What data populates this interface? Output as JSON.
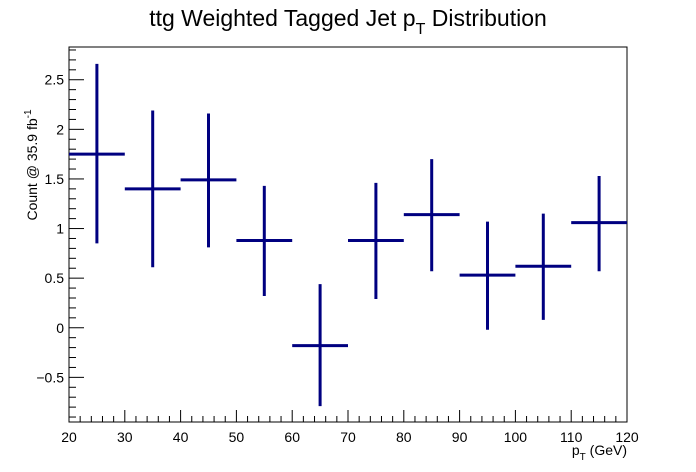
{
  "chart_data": {
    "type": "scatter",
    "style": "histogram-error-bars",
    "title_main": "ttg Weighted Tagged Jet p",
    "title_sub": "T",
    "title_end": " Distribution",
    "xlabel_main": "p",
    "xlabel_sub": "T",
    "xlabel_end": " (GeV)",
    "ylabel_main": "Count @ 35.9 fb",
    "ylabel_sup": "-1",
    "xlim": [
      20,
      120
    ],
    "ylim": [
      -0.95,
      2.83
    ],
    "xticks": [
      20,
      30,
      40,
      50,
      60,
      70,
      80,
      90,
      100,
      110,
      120
    ],
    "xtick_labels": [
      "20",
      "30",
      "40",
      "50",
      "60",
      "70",
      "80",
      "90",
      "100",
      "110",
      "120"
    ],
    "yticks": [
      -0.5,
      0,
      0.5,
      1,
      1.5,
      2,
      2.5
    ],
    "ytick_labels": [
      "−0.5",
      "0",
      "0.5",
      "1",
      "1.5",
      "2",
      "2.5"
    ],
    "grid": false,
    "color": "#000080",
    "points": [
      {
        "x": 25,
        "y": 1.75,
        "xerr": 5,
        "ylo": 0.85,
        "yhi": 2.66
      },
      {
        "x": 35,
        "y": 1.4,
        "xerr": 5,
        "ylo": 0.61,
        "yhi": 2.19
      },
      {
        "x": 45,
        "y": 1.49,
        "xerr": 5,
        "ylo": 0.81,
        "yhi": 2.16
      },
      {
        "x": 55,
        "y": 0.88,
        "xerr": 5,
        "ylo": 0.32,
        "yhi": 1.43
      },
      {
        "x": 65,
        "y": -0.18,
        "xerr": 5,
        "ylo": -0.79,
        "yhi": 0.44
      },
      {
        "x": 75,
        "y": 0.88,
        "xerr": 5,
        "ylo": 0.29,
        "yhi": 1.46
      },
      {
        "x": 85,
        "y": 1.14,
        "xerr": 5,
        "ylo": 0.57,
        "yhi": 1.7
      },
      {
        "x": 95,
        "y": 0.53,
        "xerr": 5,
        "ylo": -0.02,
        "yhi": 1.07
      },
      {
        "x": 105,
        "y": 0.62,
        "xerr": 5,
        "ylo": 0.08,
        "yhi": 1.15
      },
      {
        "x": 115,
        "y": 1.06,
        "xerr": 5,
        "ylo": 0.57,
        "yhi": 1.53
      }
    ]
  }
}
